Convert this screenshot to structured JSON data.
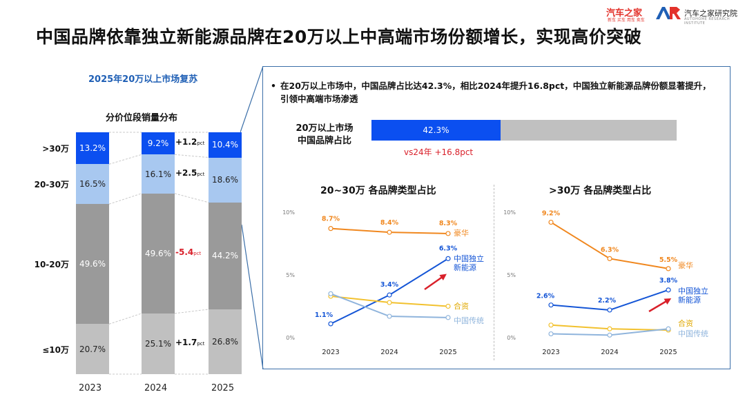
{
  "header": {
    "title": "中国品牌依靠独立新能源品牌在20万以上中高端市场份额增长，实现高价突破",
    "logo1": "汽车之家",
    "logo1_sub": "新车 买车 用车 卖车",
    "logo2": "汽车之家研究院",
    "logo2_sub": "AUTOHOME RESEARCH INSTITUTE"
  },
  "left": {
    "subtitle": "2025年20万以上市场复苏",
    "chart_title": "分价位段销量分布"
  },
  "right": {
    "bullet": "在20万以上市场中，中国品牌占比达42.3%，相比2024年提升16.8pct，中国独立新能源品牌份额显著提升，引领中高端市场渗透",
    "share_label_1": "20万以上市场",
    "share_label_2": "中国品牌占比",
    "share_text": "42.3%",
    "vs_text": "vs24年 +16.8pct",
    "chart1_title": "20~30万 各品牌类型占比",
    "chart2_title": ">30万 各品牌类型占比"
  },
  "colors": {
    "seg_top": "#0b4ff0",
    "seg_2": "#a8c8f0",
    "seg_3": "#9a9a9a",
    "seg_4": "#c0c0c0",
    "luxury": "#f0871e",
    "indep": "#1455d6",
    "jv": "#f2c12e",
    "trad": "#8fb4dc",
    "red": "#d9202a"
  },
  "chart_data": [
    {
      "type": "bar",
      "stacked": true,
      "title": "分价位段销量分布",
      "categories": [
        "2023",
        "2024",
        "2025"
      ],
      "segments_top_to_bottom": [
        ">30万",
        "20-30万",
        "10-20万",
        "≤10万"
      ],
      "series": [
        {
          "name": ">30万",
          "values": [
            13.2,
            9.2,
            10.4
          ],
          "labels": [
            "13.2%",
            "9.2%",
            "10.4%"
          ]
        },
        {
          "name": "20-30万",
          "values": [
            16.5,
            16.1,
            18.6
          ],
          "labels": [
            "16.5%",
            "16.1%",
            "18.6%"
          ]
        },
        {
          "name": "10-20万",
          "values": [
            49.6,
            49.6,
            44.2
          ],
          "labels": [
            "49.6%",
            "49.6%",
            "44.2%"
          ]
        },
        {
          "name": "≤10万",
          "values": [
            20.7,
            25.1,
            26.8
          ],
          "labels": [
            "20.7%",
            "25.1%",
            "26.8%"
          ]
        }
      ],
      "deltas": [
        {
          "segment": ">30万",
          "value": "+1.2",
          "unit": "pct"
        },
        {
          "segment": "20-30万",
          "value": "+2.5",
          "unit": "pct"
        },
        {
          "segment": "10-20万",
          "value": "-5.4",
          "unit": "pct"
        },
        {
          "segment": "≤10万",
          "value": "+1.7",
          "unit": "pct"
        }
      ]
    },
    {
      "type": "bar",
      "title": "20万以上市场 中国品牌占比",
      "values": [
        42.3
      ],
      "labels": [
        "42.3%"
      ],
      "ylim": [
        0,
        100
      ]
    },
    {
      "type": "line",
      "title": "20~30万 各品牌类型占比",
      "x": [
        "2023",
        "2024",
        "2025"
      ],
      "ylim": [
        0,
        10
      ],
      "yticks": [
        "0%",
        "5%",
        "10%"
      ],
      "series": [
        {
          "name": "豪华",
          "values": [
            8.7,
            8.4,
            8.3
          ],
          "labels": [
            "8.7%",
            "8.4%",
            "8.3%"
          ]
        },
        {
          "name": "中国独立新能源",
          "values": [
            1.1,
            3.4,
            6.3
          ],
          "labels": [
            "1.1%",
            "3.4%",
            "6.3%"
          ]
        },
        {
          "name": "合资",
          "values": [
            3.3,
            2.8,
            2.5
          ],
          "labels": []
        },
        {
          "name": "中国传统",
          "values": [
            3.5,
            1.7,
            1.6
          ],
          "labels": []
        }
      ]
    },
    {
      "type": "line",
      "title": ">30万 各品牌类型占比",
      "x": [
        "2023",
        "2024",
        "2025"
      ],
      "ylim": [
        0,
        10
      ],
      "yticks": [
        "0%",
        "5%",
        "10%"
      ],
      "series": [
        {
          "name": "豪华",
          "values": [
            9.2,
            6.3,
            5.5
          ],
          "labels": [
            "9.2%",
            "6.3%",
            "5.5%"
          ]
        },
        {
          "name": "中国独立新能源",
          "values": [
            2.6,
            2.2,
            3.8
          ],
          "labels": [
            "2.6%",
            "2.2%",
            "3.8%"
          ]
        },
        {
          "name": "合资",
          "values": [
            1.0,
            0.7,
            0.6
          ],
          "labels": []
        },
        {
          "name": "中国传统",
          "values": [
            0.3,
            0.2,
            0.7
          ],
          "labels": []
        }
      ]
    }
  ]
}
